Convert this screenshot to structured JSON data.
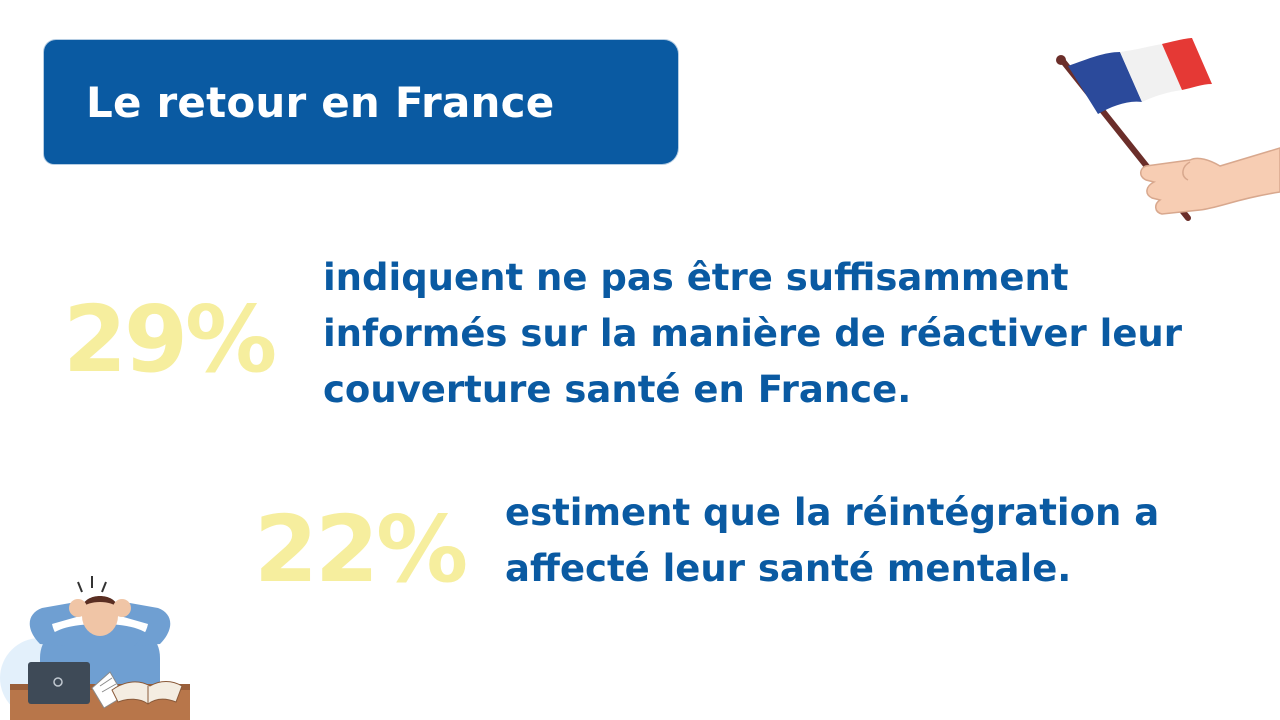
{
  "header": {
    "title": "Le retour en France"
  },
  "stats": [
    {
      "value": "29%",
      "lines": [
        "indiquent ne pas être suffisamment",
        "informés sur la manière de réactiver leur",
        "couverture santé en France."
      ]
    },
    {
      "value": "22%",
      "lines": [
        "estiment que la réintégration a",
        "affecté leur santé mentale."
      ]
    }
  ],
  "colors": {
    "brand_blue": "#0a5aa2",
    "stat_yellow": "#f6ee9e",
    "background": "#ffffff"
  },
  "illustrations": {
    "flag": "hand-holding-french-flag-icon",
    "student": "stressed-student-at-laptop-icon"
  }
}
